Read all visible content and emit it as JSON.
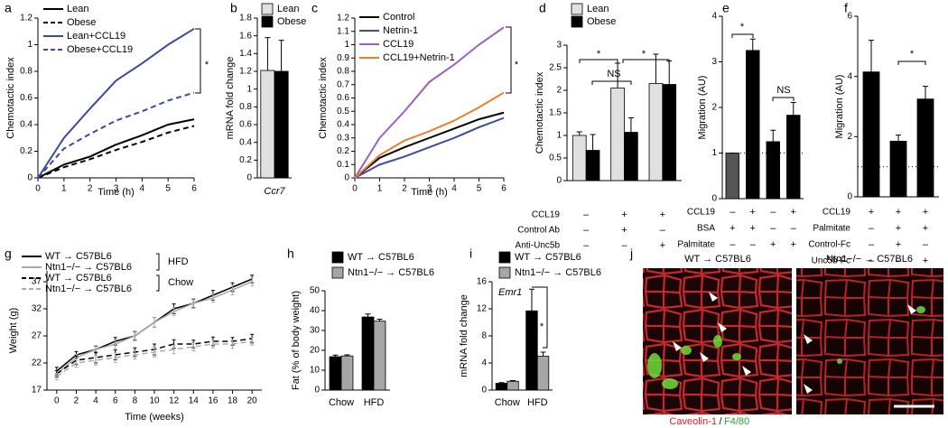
{
  "chart_data": [
    {
      "type": "line",
      "panel": "a",
      "xlabel": "Time (h)",
      "ylabel": "Chemotactic index",
      "x": [
        0,
        1,
        2,
        3,
        4,
        5,
        6
      ],
      "xlim": [
        0,
        6
      ],
      "xticks": [
        0,
        1,
        2,
        3,
        4,
        5,
        6
      ],
      "ylim": [
        0,
        1.2
      ],
      "yticks": [
        0,
        0.2,
        0.4,
        0.6,
        0.8,
        1,
        1.2
      ],
      "series": [
        {
          "name": "Lean",
          "color": "#000000",
          "dash": false,
          "values": [
            0,
            0.1,
            0.16,
            0.25,
            0.32,
            0.4,
            0.44
          ]
        },
        {
          "name": "Obese",
          "color": "#000000",
          "dash": true,
          "values": [
            0,
            0.08,
            0.14,
            0.21,
            0.27,
            0.34,
            0.39
          ]
        },
        {
          "name": "Lean+CCL19",
          "color": "#3b4aa0",
          "dash": false,
          "values": [
            0,
            0.3,
            0.52,
            0.73,
            0.86,
            1.0,
            1.12
          ]
        },
        {
          "name": "Obese+CCL19",
          "color": "#3b4aa0",
          "dash": true,
          "values": [
            0,
            0.22,
            0.33,
            0.43,
            0.5,
            0.58,
            0.64
          ]
        }
      ],
      "annotations": [
        "*"
      ]
    },
    {
      "type": "bar",
      "panel": "b",
      "ylabel": "mRNA fold change",
      "categories": [
        "Ccr7"
      ],
      "ylim": [
        0,
        1.8
      ],
      "yticks": [
        0,
        0.2,
        0.4,
        0.6,
        0.8,
        1,
        1.2,
        1.4,
        1.6,
        1.8
      ],
      "series": [
        {
          "name": "Lean",
          "color": "#e0e0e0",
          "values": [
            1.21
          ],
          "errors": [
            0.37
          ]
        },
        {
          "name": "Obese",
          "color": "#000000",
          "values": [
            1.2
          ],
          "errors": [
            0.35
          ]
        }
      ],
      "annotations": []
    },
    {
      "type": "line",
      "panel": "c",
      "xlabel": "Time (h)",
      "ylabel": "Chemotactic index",
      "x": [
        0,
        1,
        2,
        3,
        4,
        5,
        6
      ],
      "xlim": [
        0,
        6
      ],
      "xticks": [
        0,
        1,
        2,
        3,
        4,
        5,
        6
      ],
      "ylim": [
        0,
        1.2
      ],
      "yticks": [
        0,
        0.1,
        0.2,
        0.3,
        0.4,
        0.5,
        0.6,
        0.7,
        0.8,
        0.9,
        1,
        1.1,
        1.2
      ],
      "series": [
        {
          "name": "Control",
          "color": "#000000",
          "dash": false,
          "values": [
            0,
            0.15,
            0.23,
            0.3,
            0.37,
            0.44,
            0.49
          ]
        },
        {
          "name": "Netrin-1",
          "color": "#3b4aa0",
          "dash": false,
          "values": [
            0,
            0.1,
            0.16,
            0.23,
            0.3,
            0.38,
            0.45
          ]
        },
        {
          "name": "CCL19",
          "color": "#9b5fc0",
          "dash": false,
          "values": [
            0,
            0.3,
            0.5,
            0.72,
            0.85,
            1.0,
            1.13
          ]
        },
        {
          "name": "CCL19+Netrin-1",
          "color": "#ee7d2b",
          "dash": false,
          "values": [
            0,
            0.17,
            0.28,
            0.35,
            0.43,
            0.53,
            0.64
          ]
        }
      ],
      "annotations": [
        "*"
      ]
    },
    {
      "type": "bar",
      "panel": "d",
      "ylabel": "Chemotactic index",
      "categories": [
        null,
        null,
        null
      ],
      "ylim": [
        0,
        3
      ],
      "yticks": [
        0,
        0.5,
        1,
        1.5,
        2,
        2.5,
        3
      ],
      "series": [
        {
          "name": "Lean",
          "color": "#e0e0e0",
          "values": [
            1.0,
            2.05,
            2.15
          ],
          "errors": [
            0.08,
            0.55,
            0.65
          ]
        },
        {
          "name": "Obese",
          "color": "#000000",
          "values": [
            0.67,
            1.07,
            2.13
          ],
          "errors": [
            0.35,
            0.32,
            0.52
          ]
        }
      ],
      "conditions": [
        {
          "label": "CCL19",
          "marks": [
            "–",
            "+",
            "+"
          ]
        },
        {
          "label": "Control Ab",
          "marks": [
            "–",
            "+",
            "–"
          ]
        },
        {
          "label": "Anti-Unc5b",
          "marks": [
            "–",
            "–",
            "+"
          ]
        }
      ],
      "annotations": [
        "*",
        "NS",
        "*"
      ]
    },
    {
      "type": "bar",
      "panel": "e",
      "ylabel": "Migration (AU)",
      "categories": [
        null,
        null,
        null,
        null
      ],
      "ylim": [
        0,
        4
      ],
      "yticks": [
        0,
        1,
        2,
        3,
        4
      ],
      "values": [
        1.0,
        3.25,
        1.25,
        1.83
      ],
      "errors": [
        0,
        0.25,
        0.25,
        0.28
      ],
      "colors": [
        "#555555",
        "#000000",
        "#000000",
        "#000000"
      ],
      "reference_line": 1,
      "conditions": [
        {
          "label": "CCL19",
          "marks": [
            "–",
            "+",
            "–",
            "+"
          ]
        },
        {
          "label": "BSA",
          "marks": [
            "+",
            "+",
            "–",
            "–"
          ]
        },
        {
          "label": "Palmitate",
          "marks": [
            "–",
            "–",
            "+",
            "+"
          ]
        }
      ],
      "annotations": [
        "*",
        "NS"
      ]
    },
    {
      "type": "bar",
      "panel": "f",
      "ylabel": "Migration (AU)",
      "categories": [
        null,
        null,
        null
      ],
      "ylim": [
        0,
        6
      ],
      "yticks": [
        0,
        2,
        4,
        6
      ],
      "values": [
        4.15,
        1.85,
        3.25
      ],
      "errors": [
        1.05,
        0.2,
        0.42
      ],
      "colors": [
        "#000000",
        "#000000",
        "#000000"
      ],
      "reference_line": 1,
      "conditions": [
        {
          "label": "CCL19",
          "marks": [
            "+",
            "+",
            "+"
          ]
        },
        {
          "label": "Palmitate",
          "marks": [
            "–",
            "+",
            "+"
          ]
        },
        {
          "label": "Control-Fc",
          "marks": [
            "–",
            "+",
            "–"
          ]
        },
        {
          "label": "Unc5b-Fc",
          "marks": [
            "–",
            "–",
            "+"
          ]
        }
      ],
      "annotations": [
        "*"
      ]
    },
    {
      "type": "line",
      "panel": "g",
      "xlabel": "Time (weeks)",
      "ylabel": "Weight (g)",
      "x": [
        0,
        2,
        4,
        6,
        8,
        10,
        12,
        14,
        16,
        18,
        20
      ],
      "xlim": [
        -1,
        21
      ],
      "xticks": [
        0,
        2,
        4,
        6,
        8,
        10,
        12,
        14,
        16,
        18,
        20
      ],
      "ylim": [
        17,
        39
      ],
      "yticks": [
        17,
        22,
        27,
        32,
        37
      ],
      "series": [
        {
          "name": "WT → C57BL6",
          "color": "#000000",
          "dash": false,
          "values": [
            20.5,
            23.5,
            24.5,
            26,
            27,
            29.5,
            32,
            33,
            34.5,
            36,
            37.5
          ],
          "errors": [
            0.7,
            0.6,
            0.6,
            0.7,
            0.8,
            0.9,
            0.9,
            0.8,
            0.9,
            0.8,
            0.7
          ]
        },
        {
          "name": "Ntn1−/− → C57BL6",
          "color": "#aaaaaa",
          "dash": false,
          "values": [
            20,
            23,
            24.5,
            25.5,
            27,
            29.5,
            31.5,
            33,
            34,
            35.5,
            37
          ],
          "errors": [
            0.6,
            0.6,
            0.7,
            0.8,
            0.9,
            0.9,
            0.8,
            0.9,
            0.8,
            0.9,
            0.8
          ]
        },
        {
          "name": "WT → C57BL6",
          "color": "#000000",
          "dash": true,
          "values": [
            20,
            22.5,
            23,
            23.5,
            24,
            24.5,
            25.5,
            25.5,
            26,
            26,
            26.5
          ],
          "errors": [
            0.6,
            0.8,
            1.0,
            0.9,
            0.8,
            1.0,
            0.8,
            0.7,
            0.8,
            0.7,
            0.8
          ]
        },
        {
          "name": "Ntn1−/− → C57BL6",
          "color": "#aaaaaa",
          "dash": true,
          "values": [
            19.5,
            22,
            22.5,
            23,
            23.5,
            24,
            24.5,
            25,
            25.5,
            25.5,
            26
          ],
          "errors": [
            0.6,
            0.8,
            0.9,
            0.9,
            0.8,
            0.9,
            0.8,
            0.8,
            0.7,
            0.8,
            0.7
          ]
        }
      ],
      "legend_groups": [
        "HFD",
        "Chow"
      ],
      "annotations": []
    },
    {
      "type": "bar",
      "panel": "h",
      "ylabel": "Fat (% of body weight)",
      "categories": [
        "Chow",
        "HFD"
      ],
      "ylim": [
        0,
        50
      ],
      "yticks": [
        0,
        10,
        20,
        30,
        40,
        50
      ],
      "series": [
        {
          "name": "WT → C57BL6",
          "color": "#000000",
          "values": [
            16.8,
            36.8
          ],
          "errors": [
            0.8,
            1.5
          ]
        },
        {
          "name": "Ntn1−/− → C57BL6",
          "color": "#a6a6a6",
          "values": [
            17.2,
            34.7
          ],
          "errors": [
            0.5,
            1.0
          ]
        }
      ],
      "annotations": []
    },
    {
      "type": "bar",
      "panel": "i",
      "ylabel": "mRNA fold change",
      "categories": [
        "Chow",
        "HFD"
      ],
      "ylim": [
        0,
        16
      ],
      "yticks": [
        0,
        4,
        8,
        12,
        16
      ],
      "series": [
        {
          "name": "WT → C57BL6",
          "color": "#000000",
          "values": [
            1.0,
            11.7
          ],
          "errors": [
            0.1,
            3.2
          ]
        },
        {
          "name": "Ntn1−/− → C57BL6",
          "color": "#a6a6a6",
          "values": [
            1.3,
            5.0
          ],
          "errors": [
            0.1,
            0.6
          ]
        }
      ],
      "annotations": [
        "Emr1",
        "*"
      ]
    }
  ],
  "panel_j": {
    "panel": "j",
    "captions": [
      "WT → C57BL6",
      "Ntn1−/− → C57BL6"
    ],
    "stain_labels": [
      "Caveolin-1",
      "/",
      "F4/80"
    ]
  }
}
